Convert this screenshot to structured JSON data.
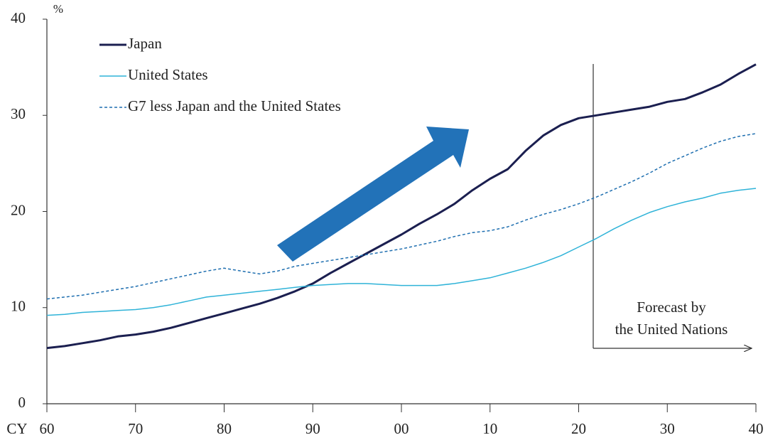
{
  "chart_data": {
    "type": "line",
    "ylabel": "%",
    "xlabel": "CY",
    "x": [
      1960,
      1962,
      1964,
      1966,
      1968,
      1970,
      1972,
      1974,
      1976,
      1978,
      1980,
      1982,
      1984,
      1986,
      1988,
      1990,
      1992,
      1994,
      1996,
      1998,
      2000,
      2002,
      2004,
      2006,
      2008,
      2010,
      2012,
      2014,
      2016,
      2018,
      2020,
      2022,
      2024,
      2026,
      2028,
      2030,
      2032,
      2034,
      2036,
      2038,
      2040
    ],
    "series": [
      {
        "name": "Japan",
        "color": "#1b1f50",
        "width": 3,
        "dashed": false,
        "values": [
          5.8,
          6.0,
          6.3,
          6.6,
          7.0,
          7.2,
          7.5,
          7.9,
          8.4,
          8.9,
          9.4,
          9.9,
          10.4,
          11.0,
          11.7,
          12.5,
          13.6,
          14.6,
          15.6,
          16.6,
          17.6,
          18.7,
          19.7,
          20.8,
          22.2,
          23.4,
          24.4,
          26.3,
          27.9,
          29.0,
          29.7,
          30.0,
          30.3,
          30.6,
          30.9,
          31.4,
          31.7,
          32.4,
          33.2,
          34.3,
          35.3
        ]
      },
      {
        "name": "United States",
        "color": "#2fb3d8",
        "width": 1.5,
        "dashed": false,
        "values": [
          9.2,
          9.3,
          9.5,
          9.6,
          9.7,
          9.8,
          10.0,
          10.3,
          10.7,
          11.1,
          11.3,
          11.5,
          11.7,
          11.9,
          12.1,
          12.3,
          12.4,
          12.5,
          12.5,
          12.4,
          12.3,
          12.3,
          12.3,
          12.5,
          12.8,
          13.1,
          13.6,
          14.1,
          14.7,
          15.4,
          16.3,
          17.2,
          18.2,
          19.1,
          19.9,
          20.5,
          21.0,
          21.4,
          21.9,
          22.2,
          22.4
        ]
      },
      {
        "name": "G7 less Japan and the United States",
        "color": "#1f6fb0",
        "width": 1.5,
        "dashed": true,
        "values": [
          10.9,
          11.1,
          11.3,
          11.6,
          11.9,
          12.2,
          12.6,
          13.0,
          13.4,
          13.8,
          14.1,
          13.8,
          13.5,
          13.8,
          14.3,
          14.6,
          14.9,
          15.2,
          15.5,
          15.8,
          16.1,
          16.5,
          16.9,
          17.4,
          17.8,
          18.0,
          18.4,
          19.1,
          19.7,
          20.2,
          20.8,
          21.5,
          22.3,
          23.1,
          24.0,
          25.0,
          25.8,
          26.6,
          27.3,
          27.8,
          28.1
        ]
      }
    ],
    "xlim": [
      1960,
      2040
    ],
    "xticks": [
      {
        "value": 1960,
        "label": "60"
      },
      {
        "value": 1970,
        "label": "70"
      },
      {
        "value": 1980,
        "label": "80"
      },
      {
        "value": 1990,
        "label": "90"
      },
      {
        "value": 2000,
        "label": "00"
      },
      {
        "value": 2010,
        "label": "10"
      },
      {
        "value": 2020,
        "label": "20"
      },
      {
        "value": 2030,
        "label": "30"
      },
      {
        "value": 2040,
        "label": "40"
      }
    ],
    "ylim": [
      0,
      40
    ],
    "yticks": [
      0,
      10,
      20,
      30,
      40
    ],
    "annotation": [
      "Forecast by",
      "the United Nations"
    ]
  }
}
